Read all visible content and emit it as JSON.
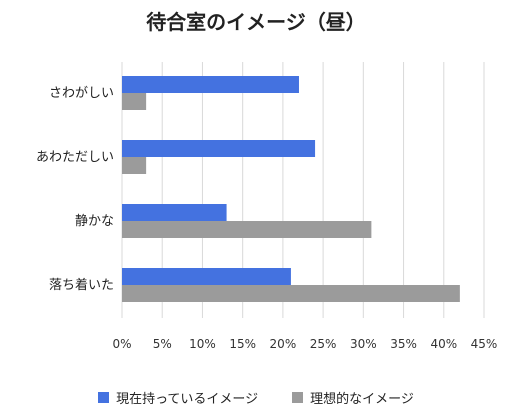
{
  "chart_data": {
    "type": "bar",
    "orientation": "horizontal",
    "title": "待合室のイメージ（昼）",
    "categories": [
      "さわがしい",
      "あわただしい",
      "静かな",
      "落ち着いた"
    ],
    "series": [
      {
        "name": "現在持っているイメージ",
        "color": "#4472e0",
        "values": [
          22,
          24,
          13,
          21
        ]
      },
      {
        "name": "理想的なイメージ",
        "color": "#9b9b9b",
        "values": [
          3,
          3,
          31,
          42
        ]
      }
    ],
    "xlim": [
      0,
      45
    ],
    "x_ticks": [
      "0%",
      "5%",
      "10%",
      "15%",
      "20%",
      "25%",
      "30%",
      "35%",
      "40%",
      "45%"
    ],
    "xlabel": "",
    "ylabel": "",
    "grid": "vertical",
    "legend_position": "bottom"
  }
}
